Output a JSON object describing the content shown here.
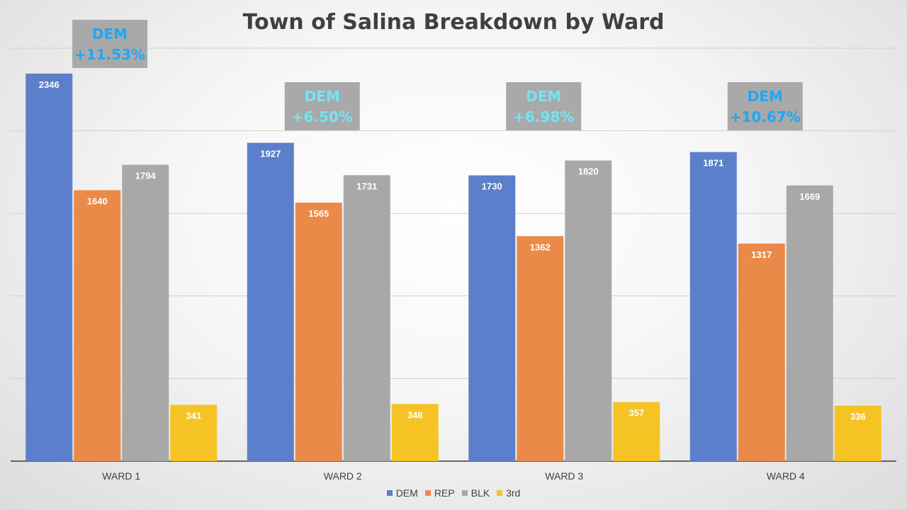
{
  "chart_data": {
    "type": "bar",
    "title": "Town of Salina Breakdown by Ward",
    "categories": [
      "WARD 1",
      "WARD 2",
      "WARD 3",
      "WARD 4"
    ],
    "series": [
      {
        "name": "DEM",
        "color": "#5b7fca",
        "values": [
          2346,
          1927,
          1730,
          1871
        ]
      },
      {
        "name": "REP",
        "color": "#ea8a48",
        "values": [
          1640,
          1565,
          1362,
          1317
        ]
      },
      {
        "name": "BLK",
        "color": "#a8a8a8",
        "values": [
          1794,
          1731,
          1820,
          1669
        ]
      },
      {
        "name": "3rd",
        "color": "#f6c325",
        "values": [
          341,
          346,
          357,
          336
        ]
      }
    ],
    "ylim": [
      0,
      2500
    ],
    "y_tick_labels": "none",
    "grid": true,
    "legend": "bottom",
    "annotations": [
      {
        "line1": "DEM",
        "line2": "+11.53%",
        "color": "#1fa7f2"
      },
      {
        "line1": "DEM",
        "line2": "+6.50%",
        "color": "#72e5f5"
      },
      {
        "line1": "DEM",
        "line2": "+6.98%",
        "color": "#72e5f5"
      },
      {
        "line1": "DEM",
        "line2": "+10.67%",
        "color": "#1fa7f2"
      }
    ]
  }
}
